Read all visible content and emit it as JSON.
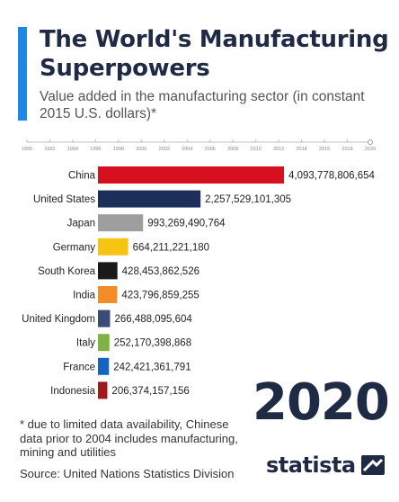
{
  "header": {
    "title": "The World's Manufacturing Superpowers",
    "subtitle": "Value added in the manufacturing sector (in constant 2015 U.S. dollars)*"
  },
  "year_label": "2020",
  "footnote": "* due to limited data availability, Chinese data prior to 2004 includes manufacturing, mining and utilities",
  "source": "Source: United Nations Statistics Division",
  "brand": {
    "name": "statista"
  },
  "chart_data": {
    "type": "bar",
    "orientation": "horizontal",
    "timeline_ticks": [
      "1990",
      "1992",
      "1994",
      "1996",
      "1998",
      "2000",
      "2002",
      "2004",
      "2006",
      "2008",
      "2010",
      "2012",
      "2014",
      "2016",
      "2018",
      "2020"
    ],
    "timeline_current": "2020",
    "categories": [
      "China",
      "United States",
      "Japan",
      "Germany",
      "South Korea",
      "India",
      "United Kingdom",
      "Italy",
      "France",
      "Indonesia"
    ],
    "values": [
      4093778806654,
      2257529101305,
      993269490764,
      664211221180,
      428453862526,
      423796859255,
      266488095604,
      252170398868,
      242421361791,
      206374157156
    ],
    "value_labels": [
      "4,093,778,806,654",
      "2,257,529,101,305",
      "993,269,490,764",
      "664,211,221,180",
      "428,453,862,526",
      "423,796,859,255",
      "266,488,095,604",
      "252,170,398,868",
      "242,421,361,791",
      "206,374,157,156"
    ],
    "colors": [
      "#d6101e",
      "#1c2f5a",
      "#9e9e9e",
      "#f7c413",
      "#1a1a1a",
      "#f28c28",
      "#3c4a78",
      "#7cb342",
      "#1565c0",
      "#a11a1a"
    ],
    "grid": false
  }
}
